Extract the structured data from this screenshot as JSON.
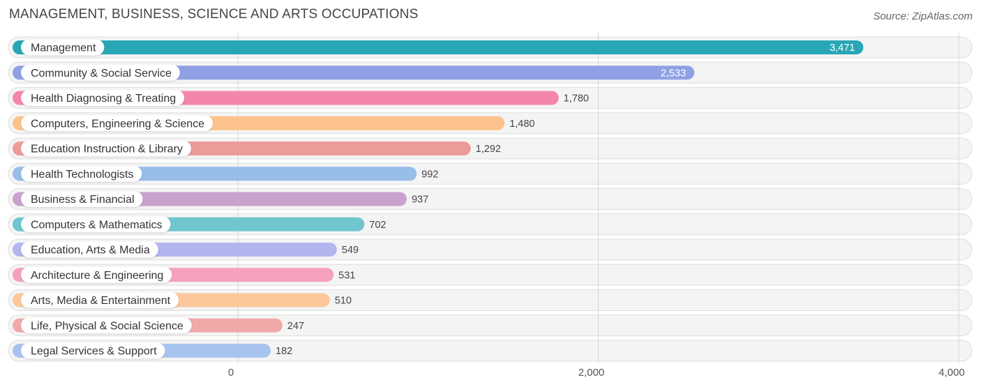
{
  "header": {
    "title": "MANAGEMENT, BUSINESS, SCIENCE AND ARTS OCCUPATIONS",
    "source": "Source: ZipAtlas.com"
  },
  "chart_data": {
    "type": "bar",
    "orientation": "horizontal",
    "title": "MANAGEMENT, BUSINESS, SCIENCE AND ARTS OCCUPATIONS",
    "xlabel": "",
    "ylabel": "",
    "xlim": [
      0,
      4000
    ],
    "ticks": [
      0,
      2000,
      4000
    ],
    "tick_labels": [
      "0",
      "2,000",
      "4,000"
    ],
    "grid": true,
    "categories": [
      "Management",
      "Community & Social Service",
      "Health Diagnosing & Treating",
      "Computers, Engineering & Science",
      "Education Instruction & Library",
      "Health Technologists",
      "Business & Financial",
      "Computers & Mathematics",
      "Education, Arts & Media",
      "Architecture & Engineering",
      "Arts, Media & Entertainment",
      "Life, Physical & Social Science",
      "Legal Services & Support"
    ],
    "values": [
      3471,
      2533,
      1780,
      1480,
      1292,
      992,
      937,
      702,
      549,
      531,
      510,
      247,
      182
    ],
    "value_labels": [
      "3,471",
      "2,533",
      "1,780",
      "1,480",
      "1,292",
      "992",
      "937",
      "702",
      "549",
      "531",
      "510",
      "247",
      "182"
    ],
    "colors": [
      "#27a7b5",
      "#8fa1e4",
      "#f486aa",
      "#fbc38b",
      "#ec9b98",
      "#97bde9",
      "#c8a2cc",
      "#6fc6cf",
      "#b1b6ee",
      "#f5a1bd",
      "#fcc89b",
      "#f0a9a8",
      "#a8c3ed"
    ]
  }
}
